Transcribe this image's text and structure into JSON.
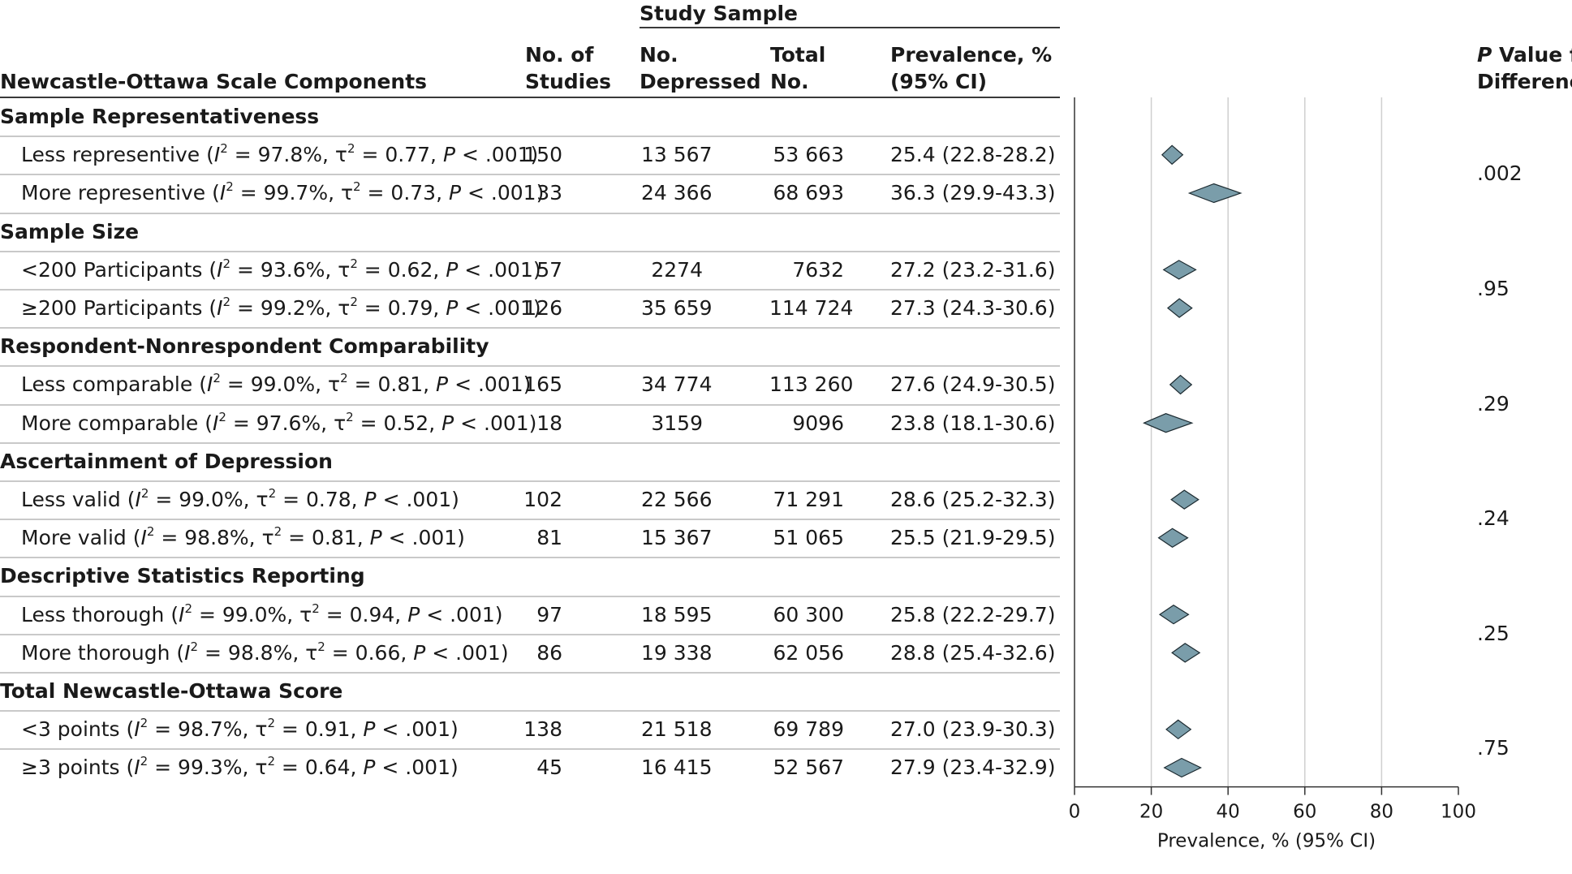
{
  "header": {
    "study_sample": "Study Sample",
    "components": "Newcastle-Ottawa Scale Components",
    "n_studies": [
      "No. of",
      "Studies"
    ],
    "n_depressed": [
      "No.",
      "Depressed"
    ],
    "total_no": [
      "Total",
      "No."
    ],
    "prevalence": [
      "Prevalence, %",
      "(95% CI)"
    ],
    "pvalue": [
      "P Value for",
      "Difference"
    ]
  },
  "colors": {
    "diamond_fill": "#7a9daa",
    "diamond_stroke": "#1c2a30",
    "gridline": "#cfcfcf",
    "axis": "#333333"
  },
  "chart_data": {
    "type": "forest",
    "xlabel": "Prevalence, %  (95% CI)",
    "xlim": [
      0,
      100
    ],
    "xticks": [
      "0",
      "20",
      "40",
      "60",
      "80",
      "100"
    ],
    "grid": true,
    "groups": [
      {
        "name": "Sample Representativeness",
        "p_value": ".002",
        "rows": [
          {
            "label": "Less representive",
            "I2": "97.8%",
            "tau2": "0.77",
            "p": "P < .001",
            "n_studies": "150",
            "n_depressed": "13 567",
            "total": "53 663",
            "prevalence": 25.4,
            "ci": [
              22.8,
              28.2
            ],
            "prev_text": "25.4 (22.8-28.2)"
          },
          {
            "label": "More representive",
            "I2": "99.7%",
            "tau2": "0.73",
            "p": "P < .001",
            "n_studies": "33",
            "n_depressed": "24 366",
            "total": "68 693",
            "prevalence": 36.3,
            "ci": [
              29.9,
              43.3
            ],
            "prev_text": "36.3 (29.9-43.3)"
          }
        ]
      },
      {
        "name": "Sample Size",
        "p_value": ".95",
        "rows": [
          {
            "label": "<200 Participants",
            "I2": "93.6%",
            "tau2": "0.62",
            "p": "P < .001",
            "n_studies": "57",
            "n_depressed": "2274",
            "total": "7632",
            "prevalence": 27.2,
            "ci": [
              23.2,
              31.6
            ],
            "prev_text": "27.2 (23.2-31.6)"
          },
          {
            "label": "≥200 Participants",
            "I2": "99.2%",
            "tau2": "0.79",
            "p": "P < .001",
            "n_studies": "126",
            "n_depressed": "35 659",
            "total": "114 724",
            "prevalence": 27.3,
            "ci": [
              24.3,
              30.6
            ],
            "prev_text": "27.3 (24.3-30.6)"
          }
        ]
      },
      {
        "name": "Respondent-Nonrespondent Comparability",
        "p_value": ".29",
        "rows": [
          {
            "label": "Less comparable",
            "I2": "99.0%",
            "tau2": "0.81",
            "p": "P < .001",
            "n_studies": "165",
            "n_depressed": "34 774",
            "total": "113 260",
            "prevalence": 27.6,
            "ci": [
              24.9,
              30.5
            ],
            "prev_text": "27.6 (24.9-30.5)"
          },
          {
            "label": "More comparable",
            "I2": "97.6%",
            "tau2": "0.52",
            "p": "P < .001",
            "n_studies": "18",
            "n_depressed": "3159",
            "total": "9096",
            "prevalence": 23.8,
            "ci": [
              18.1,
              30.6
            ],
            "prev_text": "23.8 (18.1-30.6)"
          }
        ]
      },
      {
        "name": "Ascertainment of Depression",
        "p_value": ".24",
        "rows": [
          {
            "label": "Less valid",
            "I2": "99.0%",
            "tau2": "0.78",
            "p": "P < .001",
            "n_studies": "102",
            "n_depressed": "22 566",
            "total": "71 291",
            "prevalence": 28.6,
            "ci": [
              25.2,
              32.3
            ],
            "prev_text": "28.6 (25.2-32.3)"
          },
          {
            "label": "More valid",
            "I2": "98.8%",
            "tau2": "0.81",
            "p": "P < .001",
            "n_studies": "81",
            "n_depressed": "15 367",
            "total": "51 065",
            "prevalence": 25.5,
            "ci": [
              21.9,
              29.5
            ],
            "prev_text": "25.5 (21.9-29.5)"
          }
        ]
      },
      {
        "name": "Descriptive Statistics Reporting",
        "p_value": ".25",
        "rows": [
          {
            "label": "Less thorough",
            "I2": "99.0%",
            "tau2": "0.94",
            "p": "P < .001",
            "n_studies": "97",
            "n_depressed": "18 595",
            "total": "60 300",
            "prevalence": 25.8,
            "ci": [
              22.2,
              29.7
            ],
            "prev_text": "25.8 (22.2-29.7)"
          },
          {
            "label": "More thorough",
            "I2": "98.8%",
            "tau2": "0.66",
            "p": "P < .001",
            "n_studies": "86",
            "n_depressed": "19 338",
            "total": "62 056",
            "prevalence": 28.8,
            "ci": [
              25.4,
              32.6
            ],
            "prev_text": "28.8 (25.4-32.6)"
          }
        ]
      },
      {
        "name": "Total Newcastle-Ottawa Score",
        "p_value": ".75",
        "rows": [
          {
            "label": "<3 points",
            "I2": "98.7%",
            "tau2": "0.91",
            "p": "P < .001",
            "n_studies": "138",
            "n_depressed": "21 518",
            "total": "69 789",
            "prevalence": 27.0,
            "ci": [
              23.9,
              30.3
            ],
            "prev_text": "27.0 (23.9-30.3)"
          },
          {
            "label": "≥3 points",
            "I2": "99.3%",
            "tau2": "0.64",
            "p": "P < .001",
            "n_studies": "45",
            "n_depressed": "16 415",
            "total": "52 567",
            "prevalence": 27.9,
            "ci": [
              23.4,
              32.9
            ],
            "prev_text": "27.9 (23.4-32.9)"
          }
        ]
      }
    ]
  }
}
